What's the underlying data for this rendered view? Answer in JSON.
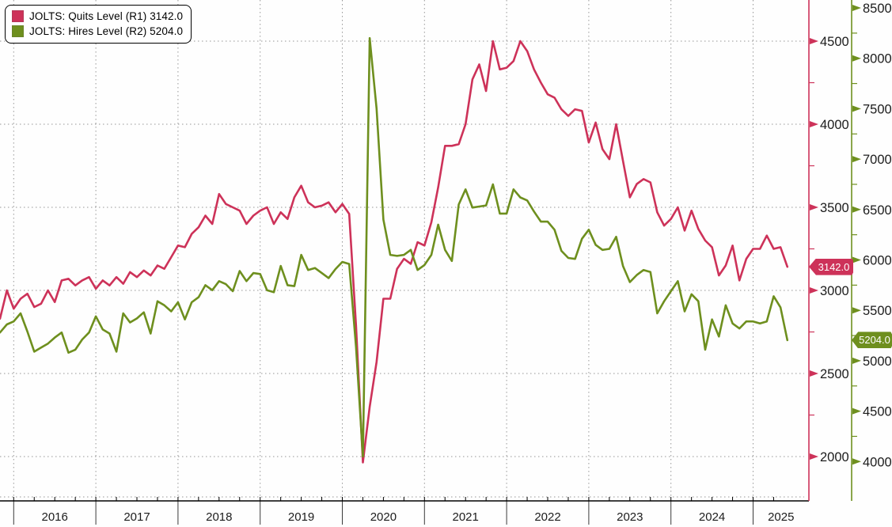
{
  "colors": {
    "quits": "#cd3259",
    "hires": "#6e8f1e",
    "grid": "#979797",
    "axis_black": "#000000",
    "text": "#1c1c1c"
  },
  "legend": {
    "items": [
      {
        "id": "quits",
        "label": "JOLTS: Quits Level (R1) 3142.0",
        "swatch_color": "#cd3259"
      },
      {
        "id": "hires",
        "label": "JOLTS: Hires Level (R2) 5204.0",
        "swatch_color": "#6e8f1e"
      }
    ]
  },
  "badges": {
    "quits": "3142.0",
    "hires": "5204.0"
  },
  "chart_data": {
    "type": "line",
    "x_axis": {
      "unit": "month",
      "start": "2015-11",
      "end": "2025-06",
      "year_labels": [
        "2016",
        "2017",
        "2018",
        "2019",
        "2020",
        "2021",
        "2022",
        "2023",
        "2024",
        "2025"
      ]
    },
    "axes": {
      "R1": {
        "side": "right_inner",
        "color": "#cd3259",
        "ticks": [
          2000,
          2500,
          3000,
          3500,
          4000,
          4500
        ],
        "minor_step": 250
      },
      "R2": {
        "side": "right_outer",
        "color": "#6e8f1e",
        "ticks": [
          4000,
          4500,
          5000,
          5500,
          6000,
          6500,
          7000,
          7500,
          8000,
          8500
        ],
        "minor_step": 250
      }
    },
    "grid": {
      "horizontal": "R1_ticks",
      "vertical": "year_boundaries",
      "style": "dotted"
    },
    "series": [
      {
        "name": "JOLTS: Quits Level",
        "axis": "R1",
        "color": "#cd3259",
        "last_value": 3142.0,
        "values": [
          2830,
          3000,
          2890,
          2950,
          2980,
          2900,
          2920,
          3000,
          2930,
          3060,
          3070,
          3030,
          3060,
          3080,
          3010,
          3060,
          3030,
          3080,
          3040,
          3110,
          3080,
          3120,
          3090,
          3150,
          3130,
          3200,
          3270,
          3260,
          3340,
          3380,
          3450,
          3400,
          3580,
          3520,
          3500,
          3480,
          3400,
          3450,
          3480,
          3500,
          3400,
          3470,
          3430,
          3560,
          3630,
          3530,
          3500,
          3510,
          3530,
          3470,
          3520,
          3460,
          2790,
          1965,
          2300,
          2570,
          2950,
          2950,
          3130,
          3190,
          3160,
          3290,
          3270,
          3410,
          3620,
          3870,
          3870,
          3880,
          4000,
          4270,
          4360,
          4200,
          4500,
          4330,
          4340,
          4380,
          4500,
          4440,
          4330,
          4250,
          4180,
          4160,
          4090,
          4050,
          4090,
          4080,
          3890,
          4010,
          3850,
          3790,
          4000,
          3780,
          3560,
          3640,
          3670,
          3650,
          3470,
          3390,
          3430,
          3500,
          3360,
          3480,
          3370,
          3300,
          3260,
          3090,
          3150,
          3270,
          3060,
          3190,
          3250,
          3250,
          3330,
          3250,
          3260,
          3142
        ]
      },
      {
        "name": "JOLTS: Hires Level",
        "axis": "R2",
        "color": "#6e8f1e",
        "last_value": 5204.0,
        "values": [
          5280,
          5360,
          5390,
          5470,
          5290,
          5090,
          5130,
          5170,
          5230,
          5280,
          5080,
          5110,
          5210,
          5280,
          5440,
          5310,
          5270,
          5090,
          5470,
          5380,
          5420,
          5480,
          5270,
          5590,
          5550,
          5490,
          5580,
          5410,
          5580,
          5630,
          5750,
          5700,
          5790,
          5760,
          5690,
          5890,
          5790,
          5870,
          5860,
          5700,
          5680,
          5940,
          5750,
          5740,
          6050,
          5900,
          5920,
          5870,
          5820,
          5910,
          5980,
          5960,
          5140,
          4050,
          8200,
          7500,
          6400,
          6050,
          6040,
          6050,
          6100,
          5900,
          5950,
          6050,
          6350,
          6100,
          5990,
          6550,
          6700,
          6520,
          6530,
          6540,
          6750,
          6460,
          6460,
          6700,
          6620,
          6590,
          6480,
          6380,
          6380,
          6300,
          6090,
          6020,
          6010,
          6210,
          6300,
          6150,
          6100,
          6110,
          6230,
          5940,
          5780,
          5850,
          5900,
          5880,
          5470,
          5590,
          5690,
          5790,
          5490,
          5660,
          5590,
          5110,
          5410,
          5240,
          5550,
          5370,
          5320,
          5390,
          5390,
          5370,
          5390,
          5640,
          5530,
          5204
        ]
      }
    ]
  }
}
